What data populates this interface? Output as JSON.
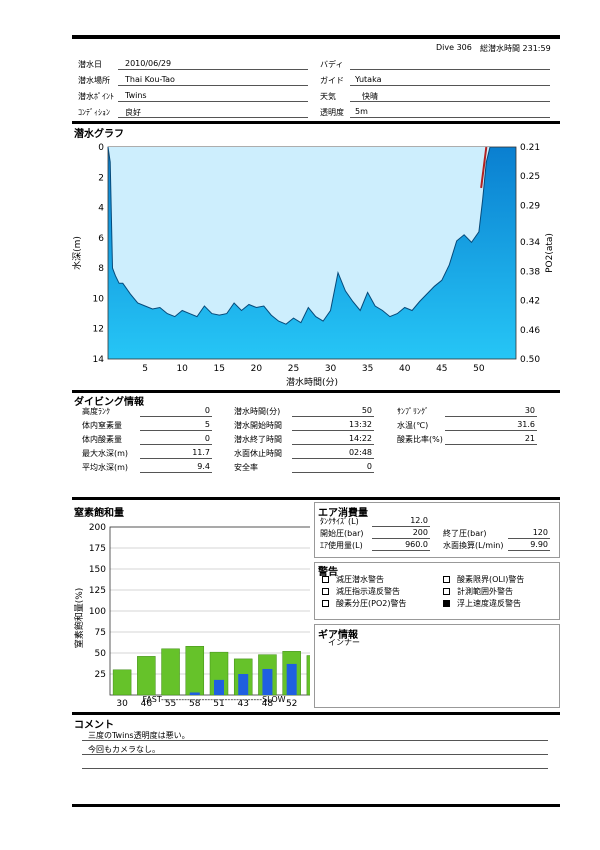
{
  "header": {
    "dive_no": "Dive 306",
    "total_label": "総潜水時間 231:59"
  },
  "info": {
    "date": {
      "label": "潜水日",
      "value": "2010/06/29"
    },
    "location": {
      "label": "潜水場所",
      "value": "Thai Kou-Tao"
    },
    "point": {
      "label": "潜水ﾎﾟｲﾝﾄ",
      "value": "Twins"
    },
    "condition": {
      "label": "ｺﾝﾃﾞｨｼｮﾝ",
      "value": "良好"
    },
    "buddy": {
      "label": "バディ",
      "value": ""
    },
    "guide": {
      "label": "ガイド",
      "value": "Yutaka"
    },
    "weather": {
      "label": "天気",
      "value": "快晴"
    },
    "visibility": {
      "label": "透明度",
      "value": "5m"
    }
  },
  "dive_graph": {
    "title": "潜水グラフ",
    "ylabel": "水深(m)",
    "y2label": "PO2(ata)",
    "xlabel": "潜水時間(分)",
    "y_ticks": [
      "0",
      "2",
      "4",
      "6",
      "8",
      "10",
      "12",
      "14"
    ],
    "y2_ticks": [
      "0.21",
      "0.25",
      "0.29",
      "0.34",
      "0.38",
      "0.42",
      "0.46",
      "0.50"
    ],
    "x_ticks": [
      "5",
      "10",
      "15",
      "20",
      "25",
      "30",
      "35",
      "40",
      "45",
      "50"
    ]
  },
  "chart_data": [
    {
      "type": "area",
      "title": "潜水グラフ",
      "xlabel": "潜水時間(分)",
      "ylabel": "水深(m)",
      "y2label": "PO2(ata)",
      "xlim": [
        0,
        55
      ],
      "ylim": [
        14,
        0
      ],
      "y2lim": [
        0.21,
        0.5
      ],
      "series": [
        {
          "name": "depth",
          "x": [
            0,
            0.3,
            0.6,
            1,
            1.5,
            2,
            3,
            4,
            5,
            6,
            7,
            8,
            9,
            10,
            11,
            12,
            13,
            14,
            15,
            16,
            17,
            18,
            19,
            20,
            21,
            22,
            23,
            24,
            25,
            26,
            27,
            28,
            29,
            30,
            31,
            32,
            33,
            34,
            35,
            36,
            37,
            38,
            39,
            40,
            41,
            42,
            43,
            44,
            45,
            46,
            47,
            48,
            49,
            50,
            50.5,
            51,
            51.5
          ],
          "values": [
            0,
            1,
            8,
            8.5,
            9,
            9,
            9.7,
            10.3,
            10.5,
            10.7,
            10.6,
            11,
            11.2,
            10.8,
            11,
            11.2,
            10.5,
            11,
            11.1,
            11,
            10.3,
            10.8,
            10.4,
            10.6,
            10.5,
            11.1,
            11.5,
            11.7,
            11.3,
            11.6,
            10.6,
            11.2,
            11.5,
            10.8,
            8.3,
            9.5,
            10.2,
            10.8,
            9.6,
            10.5,
            10.8,
            11.2,
            11,
            10.6,
            10.8,
            10.2,
            9.7,
            9.2,
            8.8,
            7.8,
            6.2,
            5.8,
            6.3,
            5.6,
            3.5,
            1,
            0
          ]
        },
        {
          "name": "PO2",
          "x": [
            50.3,
            51
          ],
          "values": [
            0.266,
            0.21
          ]
        }
      ]
    },
    {
      "type": "bar",
      "title": "窒素飽和量",
      "ylabel": "窒素飽和量(%)",
      "ylim": [
        0,
        200
      ],
      "categories": [
        "30",
        "46",
        "55",
        "58",
        "51",
        "43",
        "48",
        "52",
        "47"
      ],
      "series": [
        {
          "name": "green",
          "values": [
            30,
            46,
            55,
            58,
            51,
            43,
            48,
            52,
            47
          ]
        },
        {
          "name": "blue",
          "values": [
            0,
            0,
            0,
            3,
            18,
            25,
            31,
            37,
            35
          ]
        }
      ]
    }
  ],
  "nitro": {
    "title": "窒素飽和量",
    "ylabel": "窒素飽和量(%)",
    "y_ticks": [
      "200",
      "175",
      "150",
      "125",
      "100",
      "75",
      "50",
      "25"
    ],
    "fast_slow": "FAST-----------------------------------SLOW"
  },
  "diving": {
    "title": "ダイビング情報",
    "col1": [
      {
        "label": "高度ﾗﾝｸ",
        "value": "0"
      },
      {
        "label": "体内窒素量",
        "value": "5"
      },
      {
        "label": "体内酸素量",
        "value": "0"
      },
      {
        "label": "最大水深(m)",
        "value": "11.7"
      },
      {
        "label": "平均水深(m)",
        "value": "9.4"
      }
    ],
    "col2": [
      {
        "label": "潜水時間(分)",
        "value": "50"
      },
      {
        "label": "潜水開始時間",
        "value": "13:32"
      },
      {
        "label": "潜水終了時間",
        "value": "14:22"
      },
      {
        "label": "水面休止時間",
        "value": "02:48"
      },
      {
        "label": "安全率",
        "value": "0"
      }
    ],
    "col3": [
      {
        "label": "ｻﾝﾌﾟﾘﾝｸﾞ",
        "value": "30"
      },
      {
        "label": "水温(℃)",
        "value": "31.6"
      },
      {
        "label": "酸素比率(%)",
        "value": "21"
      }
    ]
  },
  "air": {
    "title": "エア消費量",
    "tank_label": "ﾀﾝｸｻｲｽﾞ(L)",
    "tank_value": "12.0",
    "start_label": "開始圧(bar)",
    "start_value": "200",
    "end_label": "終了圧(bar)",
    "end_value": "120",
    "used_label": "ｴｱ使用量(L)",
    "used_value": "960.0",
    "surface_label": "水面換算(L/min)",
    "surface_value": "9.90"
  },
  "warnings": {
    "title": "警告",
    "items": [
      {
        "label": "減圧潜水警告",
        "checked": false
      },
      {
        "label": "酸素限界(OLI)警告",
        "checked": false
      },
      {
        "label": "減圧指示違反警告",
        "checked": false
      },
      {
        "label": "計測範囲外警告",
        "checked": false
      },
      {
        "label": "酸素分圧(PO2)警告",
        "checked": false
      },
      {
        "label": "浮上速度違反警告",
        "checked": true
      }
    ]
  },
  "gear": {
    "title": "ギア情報",
    "value": "インナー"
  },
  "comment": {
    "title": "コメント",
    "lines": [
      "三度のTwins透明度は悪い。",
      "今回もカメラなし。"
    ]
  }
}
